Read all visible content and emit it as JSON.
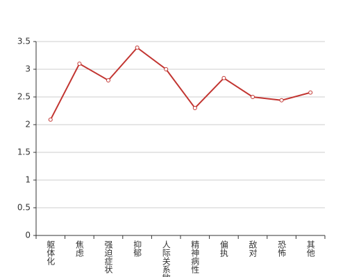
{
  "chart_data": {
    "type": "line",
    "categories": [
      "躯体化",
      "焦虑",
      "强迫症状",
      "抑郁",
      "人际关系敏感",
      "精神病性",
      "偏执",
      "敌对",
      "恐怖",
      "其他"
    ],
    "values": [
      2.09,
      3.1,
      2.8,
      3.39,
      3.0,
      2.3,
      2.84,
      2.5,
      2.44,
      2.58
    ],
    "color": "#c23531",
    "ylim": [
      0,
      3.5
    ],
    "yticks": [
      0,
      0.5,
      1,
      1.5,
      2,
      2.5,
      3,
      3.5
    ],
    "grid": true
  }
}
